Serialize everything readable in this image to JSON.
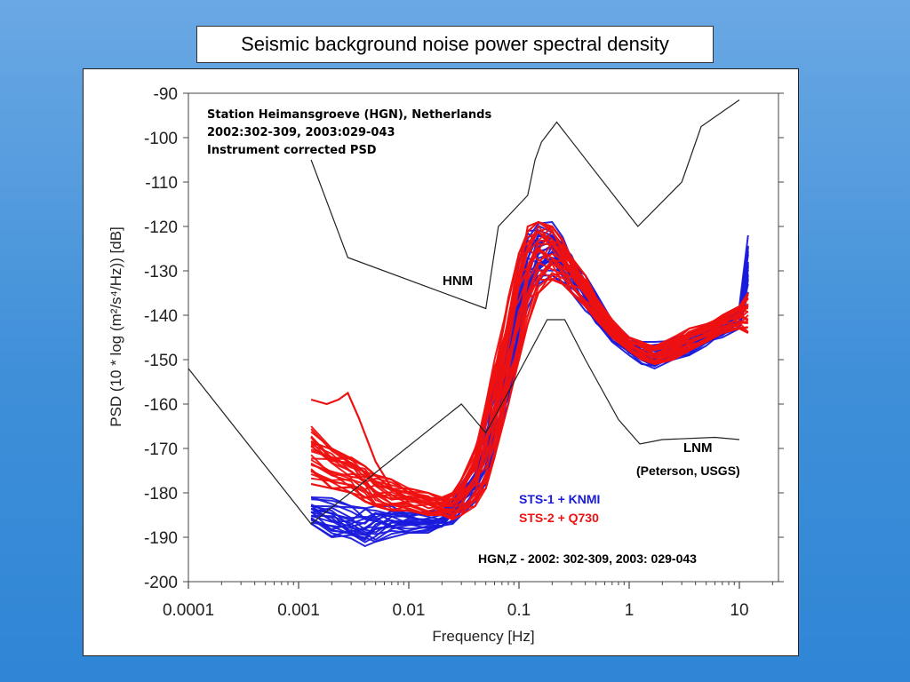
{
  "slide": {
    "title": "Seismic background noise power spectral density"
  },
  "chart_data": {
    "type": "line",
    "xscale": "log",
    "xlim": [
      0.0001,
      20
    ],
    "ylim": [
      -200,
      -90
    ],
    "x_ticks": [
      "0.0001",
      "0.001",
      "0.01",
      "0.1",
      "1",
      "10"
    ],
    "y_ticks": [
      "-90",
      "-100",
      "-110",
      "-120",
      "-130",
      "-140",
      "-150",
      "-160",
      "-170",
      "-180",
      "-190",
      "-200"
    ],
    "xlabel": "Frequency   [Hz]",
    "ylabel": "PSD (10 * log (m²/s⁴/Hz))   [dB]",
    "annotations": {
      "station": "Station Heimansgroeve (HGN), Netherlands",
      "dates": "2002:302-309,   2003:029-043",
      "processing": "Instrument corrected PSD",
      "hnm": "HNM",
      "lnm": "LNM",
      "lnm_source": "(Peterson, USGS)",
      "footer": "HGN,Z - 2002: 302-309, 2003: 029-043"
    },
    "legend": {
      "placement": "bottom-right",
      "entries": [
        {
          "label": "STS-1 + KNMI",
          "color": "#1a1adb"
        },
        {
          "label": "STS-2 + Q730",
          "color": "#ee1111"
        }
      ]
    },
    "reference_models": [
      {
        "name": "HNM",
        "x": [
          0.0013,
          0.0028,
          0.05,
          0.065,
          0.12,
          0.14,
          0.16,
          0.22,
          1.2,
          3.0,
          4.5,
          10
        ],
        "y": [
          -105,
          -127,
          -138.5,
          -120,
          -113,
          -105,
          -101,
          -96.5,
          -120,
          -110,
          -97.5,
          -91.5
        ]
      },
      {
        "name": "LNM",
        "x": [
          0.0001,
          0.0013,
          0.03,
          0.05,
          0.09,
          0.18,
          0.26,
          0.4,
          0.8,
          1.25,
          2.0,
          6,
          10
        ],
        "y": [
          -152,
          -187,
          -160,
          -166.5,
          -155,
          -141,
          -141,
          -150,
          -163.5,
          -169,
          -168,
          -167.5,
          -168
        ]
      }
    ],
    "blue_series_envelope": {
      "color": "#1a1adb",
      "x": [
        0.0013,
        0.002,
        0.003,
        0.004,
        0.005,
        0.007,
        0.01,
        0.015,
        0.02,
        0.025,
        0.03,
        0.04,
        0.05,
        0.06,
        0.08,
        0.1,
        0.12,
        0.15,
        0.2,
        0.25,
        0.3,
        0.4,
        0.5,
        0.7,
        1.0,
        1.3,
        1.7,
        2.5,
        3.5,
        5,
        7,
        10,
        12
      ],
      "upper": [
        -181,
        -181,
        -183,
        -183,
        -183,
        -183,
        -184,
        -184,
        -184,
        -181,
        -178,
        -173,
        -164,
        -155,
        -141,
        -128,
        -121,
        -119,
        -119,
        -122,
        -126,
        -131,
        -135,
        -141,
        -145,
        -146,
        -146,
        -145,
        -144,
        -142,
        -141,
        -138,
        -122
      ],
      "lower": [
        -187,
        -190,
        -191,
        -192,
        -191,
        -190,
        -189,
        -189,
        -188,
        -187,
        -185,
        -182,
        -178,
        -170,
        -160,
        -148,
        -139,
        -133,
        -131,
        -133,
        -135,
        -139,
        -142,
        -146,
        -149,
        -151,
        -152,
        -150,
        -149,
        -147,
        -145,
        -143,
        -135
      ]
    },
    "red_series_envelope": {
      "color": "#ee1111",
      "x": [
        0.0013,
        0.002,
        0.003,
        0.004,
        0.005,
        0.007,
        0.01,
        0.015,
        0.02,
        0.025,
        0.03,
        0.04,
        0.05,
        0.06,
        0.08,
        0.1,
        0.12,
        0.15,
        0.2,
        0.25,
        0.3,
        0.4,
        0.5,
        0.7,
        1.0,
        1.3,
        1.7,
        2.5,
        3.5,
        5,
        7,
        10,
        12
      ],
      "upper": [
        -165,
        -170,
        -172,
        -174,
        -176,
        -177,
        -179,
        -180,
        -181,
        -180,
        -177,
        -170,
        -160,
        -150,
        -136,
        -126,
        -120,
        -119,
        -120,
        -123,
        -127,
        -131,
        -136,
        -141,
        -145,
        -146,
        -147,
        -145,
        -143,
        -142,
        -140,
        -138,
        -135
      ],
      "lower": [
        -178,
        -179,
        -180,
        -182,
        -183,
        -184,
        -184,
        -185,
        -185,
        -186,
        -185,
        -183,
        -179,
        -172,
        -160,
        -150,
        -142,
        -135,
        -132,
        -133,
        -135,
        -138,
        -141,
        -145,
        -148,
        -150,
        -151,
        -150,
        -148,
        -146,
        -144,
        -143,
        -144
      ]
    },
    "red_outlier_series": {
      "color": "#ee1111",
      "x": [
        0.0013,
        0.0018,
        0.0023,
        0.0028,
        0.0035,
        0.005,
        0.007,
        0.01
      ],
      "y": [
        -159,
        -160,
        -159,
        -157.5,
        -163,
        -173,
        -179,
        -182
      ]
    },
    "curve_counts": {
      "blue": 22,
      "red": 28
    }
  }
}
